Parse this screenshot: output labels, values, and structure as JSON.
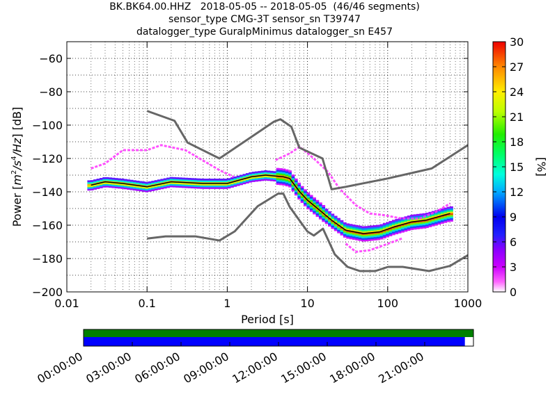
{
  "title_lines": [
    "BK.BK64.00.HHZ   2018-05-05 -- 2018-05-05  (46/46 segments)",
    "sensor_type CMG-3T sensor_sn T39747",
    "datalogger_type GuralpMinimus datalogger_sn E457"
  ],
  "chart_data": {
    "type": "heatmap",
    "title": "BK.BK64.00.HHZ   2018-05-05 -- 2018-05-05  (46/46 segments)",
    "xlabel": "Period [s]",
    "ylabel": "Power [m²/s⁴/Hz] [dB]",
    "ylabel_parts": {
      "prefix": "Power [",
      "unit_base": "m",
      "unit_exp1": "2",
      "unit_mid": "/s",
      "unit_exp2": "4",
      "unit_end": "/Hz",
      "suffix": "] [dB]"
    },
    "xscale": "log",
    "xlim": [
      0.01,
      1000
    ],
    "ylim": [
      -200,
      -50
    ],
    "xticks": [
      0.01,
      0.1,
      1,
      10,
      100,
      1000
    ],
    "xtick_labels": [
      "0.01",
      "0.1",
      "1",
      "10",
      "100",
      "1000"
    ],
    "yticks": [
      -200,
      -180,
      -160,
      -140,
      -120,
      -100,
      -80,
      -60
    ],
    "ytick_labels": [
      "−200",
      "−180",
      "−160",
      "−140",
      "−120",
      "−100",
      "−80",
      "−60"
    ],
    "grid": "dotted",
    "colorbar": {
      "label": "[%]",
      "range": [
        0,
        30
      ],
      "ticks": [
        0,
        3,
        6,
        9,
        12,
        15,
        18,
        21,
        24,
        27,
        30
      ],
      "tick_labels": [
        "0",
        "3",
        "6",
        "9",
        "12",
        "15",
        "18",
        "21",
        "24",
        "27",
        "30"
      ],
      "colormap": "pqlx"
    },
    "mean_curve": {
      "x": [
        0.02,
        0.03,
        0.05,
        0.1,
        0.2,
        0.5,
        1,
        2,
        3,
        5,
        6,
        8,
        10,
        15,
        20,
        30,
        50,
        80,
        120,
        200,
        300,
        500,
        600
      ],
      "y": [
        -136,
        -134,
        -135,
        -137,
        -134,
        -135,
        -135,
        -131,
        -130,
        -131,
        -132,
        -140,
        -145,
        -152,
        -157,
        -163,
        -165,
        -164,
        -161,
        -158,
        -157,
        -154,
        -153
      ]
    },
    "nlnm_curve": {
      "x": [
        0.1,
        0.17,
        0.4,
        0.8,
        1.24,
        2.4,
        4.3,
        5,
        6,
        10,
        12,
        15.6,
        21.9,
        31.6,
        45,
        70,
        101,
        154,
        328,
        600,
        1000
      ],
      "y": [
        -168,
        -166.7,
        -166.7,
        -169.2,
        -163.7,
        -148.6,
        -141.1,
        -141.1,
        -149,
        -163.8,
        -166.2,
        -162.1,
        -177.5,
        -185,
        -187.5,
        -187.5,
        -185,
        -185,
        -187.5,
        -184.4,
        -178
      ]
    },
    "nhnm_curve": {
      "x": [
        0.1,
        0.22,
        0.32,
        0.8,
        3.8,
        4.6,
        6.3,
        7.9,
        15.4,
        20,
        30,
        100,
        354,
        1000
      ],
      "y": [
        -91.5,
        -97.4,
        -110.5,
        -120,
        -98,
        -96.5,
        -101,
        -113.5,
        -120,
        -138.5,
        -137,
        -132,
        -126,
        -112
      ]
    },
    "density_note": "probabilistic PSD density"
  },
  "timeline": {
    "tick_labels": [
      "00:00:00",
      "03:00:00",
      "06:00:00",
      "09:00:00",
      "12:00:00",
      "15:00:00",
      "18:00:00",
      "21:00:00"
    ],
    "coverage_fraction": 0.978,
    "bar_colors": {
      "top": "#008000",
      "bottom": "#0000ff"
    }
  }
}
